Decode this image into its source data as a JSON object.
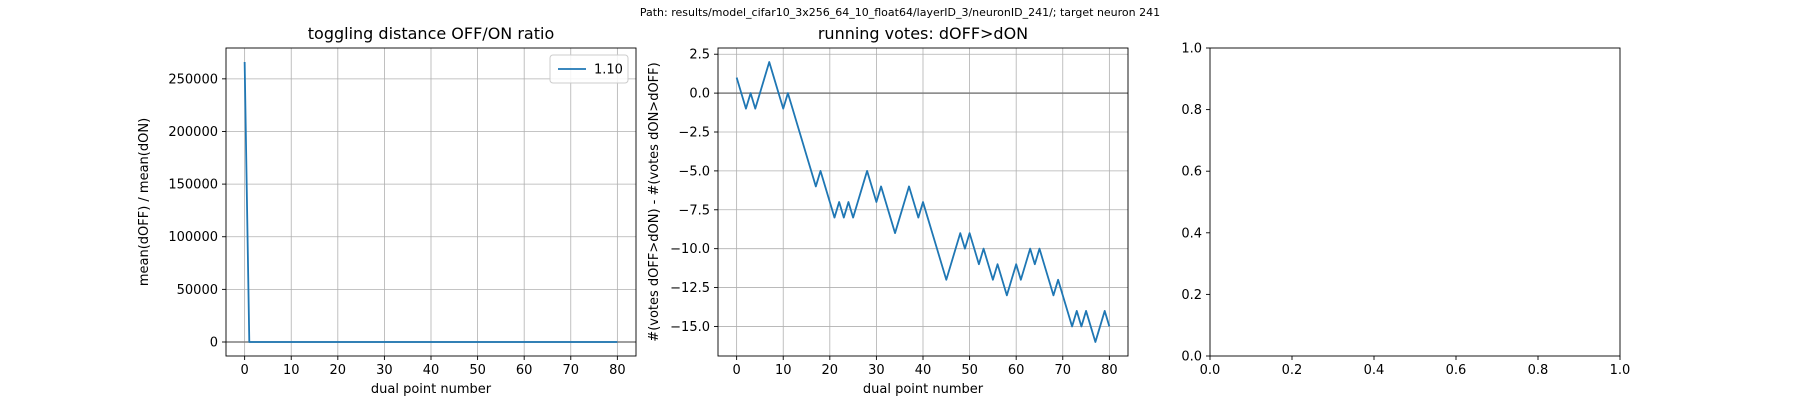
{
  "suptitle": "Path: results/model_cifar10_3x256_64_10_float64/layerID_3/neuronID_241/; target neuron 241",
  "colors": {
    "series": "#1f77b4",
    "zero_line": "#7f7f7f",
    "grid": "#b0b0b0"
  },
  "chart_data": [
    {
      "type": "line",
      "title": "toggling distance OFF/ON ratio",
      "xlabel": "dual point number",
      "ylabel": "mean(dOFF) / mean(dON)",
      "xlim": [
        -4,
        84
      ],
      "ylim": [
        -13300,
        279300
      ],
      "xticks": [
        0,
        10,
        20,
        30,
        40,
        50,
        60,
        70,
        80
      ],
      "xtick_labels": [
        "0",
        "10",
        "20",
        "30",
        "40",
        "50",
        "60",
        "70",
        "80"
      ],
      "yticks": [
        0,
        50000,
        100000,
        150000,
        200000,
        250000
      ],
      "ytick_labels": [
        "0",
        "50000",
        "100000",
        "150000",
        "200000",
        "250000"
      ],
      "grid": true,
      "legend": {
        "placement": "top-right",
        "entries": [
          "1.10"
        ]
      },
      "zero_line": true,
      "series": [
        {
          "name": "1.10",
          "x": [
            0,
            1,
            2,
            3,
            4,
            5,
            6,
            7,
            8,
            9,
            10,
            11,
            12,
            13,
            14,
            15,
            16,
            17,
            18,
            19,
            20,
            21,
            22,
            23,
            24,
            25,
            26,
            27,
            28,
            29,
            30,
            31,
            32,
            33,
            34,
            35,
            36,
            37,
            38,
            39,
            40,
            41,
            42,
            43,
            44,
            45,
            46,
            47,
            48,
            49,
            50,
            51,
            52,
            53,
            54,
            55,
            56,
            57,
            58,
            59,
            60,
            61,
            62,
            63,
            64,
            65,
            66,
            67,
            68,
            69,
            70,
            71,
            72,
            73,
            74,
            75,
            76,
            77,
            78,
            79,
            80
          ],
          "values": [
            266000,
            1.5,
            1.2,
            1.1,
            1.1,
            1.0,
            1.1,
            1.2,
            1.0,
            1.1,
            1.0,
            1.1,
            1.0,
            1.0,
            1.1,
            1.0,
            1.0,
            1.0,
            1.1,
            1.0,
            1.0,
            1.0,
            1.1,
            1.0,
            1.0,
            1.0,
            1.1,
            1.0,
            1.0,
            1.0,
            1.1,
            1.0,
            1.0,
            1.0,
            1.1,
            1.0,
            1.0,
            1.0,
            1.1,
            1.0,
            1.0,
            1.0,
            1.1,
            1.0,
            1.0,
            1.0,
            1.1,
            1.0,
            1.0,
            1.0,
            1.1,
            1.0,
            1.0,
            1.0,
            1.1,
            1.0,
            1.0,
            1.0,
            1.1,
            1.0,
            1.0,
            1.0,
            1.1,
            1.0,
            1.0,
            1.0,
            1.1,
            1.0,
            1.0,
            1.0,
            1.1,
            1.0,
            1.0,
            1.0,
            1.1,
            1.0,
            1.0,
            1.0,
            1.1,
            1.0,
            1.1
          ]
        }
      ]
    },
    {
      "type": "line",
      "title": "running votes: dOFF>dON",
      "xlabel": "dual point number",
      "ylabel": "#(votes dOFF>dON) - #(votes dON>dOFF)",
      "xlim": [
        -4,
        84
      ],
      "ylim": [
        -16.9,
        2.9
      ],
      "xticks": [
        0,
        10,
        20,
        30,
        40,
        50,
        60,
        70,
        80
      ],
      "xtick_labels": [
        "0",
        "10",
        "20",
        "30",
        "40",
        "50",
        "60",
        "70",
        "80"
      ],
      "yticks": [
        2.5,
        0.0,
        -2.5,
        -5.0,
        -7.5,
        -10.0,
        -12.5,
        -15.0
      ],
      "ytick_labels": [
        "2.5",
        "0.0",
        "−2.5",
        "−5.0",
        "−7.5",
        "−10.0",
        "−12.5",
        "−15.0"
      ],
      "grid": true,
      "zero_line": true,
      "series": [
        {
          "x": [
            0,
            1,
            2,
            3,
            4,
            5,
            6,
            7,
            8,
            9,
            10,
            11,
            12,
            13,
            14,
            15,
            16,
            17,
            18,
            19,
            20,
            21,
            22,
            23,
            24,
            25,
            26,
            27,
            28,
            29,
            30,
            31,
            32,
            33,
            34,
            35,
            36,
            37,
            38,
            39,
            40,
            41,
            42,
            43,
            44,
            45,
            46,
            47,
            48,
            49,
            50,
            51,
            52,
            53,
            54,
            55,
            56,
            57,
            58,
            59,
            60,
            61,
            62,
            63,
            64,
            65,
            66,
            67,
            68,
            69,
            70,
            71,
            72,
            73,
            74,
            75,
            76,
            77,
            78,
            79,
            80
          ],
          "values": [
            1,
            0,
            -1,
            0,
            -1,
            0,
            1,
            2,
            1,
            0,
            -1,
            0,
            -1,
            -2,
            -3,
            -4,
            -5,
            -6,
            -5,
            -6,
            -7,
            -8,
            -7,
            -8,
            -7,
            -8,
            -7,
            -6,
            -5,
            -6,
            -7,
            -6,
            -7,
            -8,
            -9,
            -8,
            -7,
            -6,
            -7,
            -8,
            -7,
            -8,
            -9,
            -10,
            -11,
            -12,
            -11,
            -10,
            -9,
            -10,
            -9,
            -10,
            -11,
            -10,
            -11,
            -12,
            -11,
            -12,
            -13,
            -12,
            -11,
            -12,
            -11,
            -10,
            -11,
            -10,
            -11,
            -12,
            -13,
            -12,
            -13,
            -14,
            -15,
            -14,
            -15,
            -14,
            -15,
            -16,
            -15,
            -14,
            -15
          ]
        }
      ]
    },
    {
      "type": "line",
      "title": "",
      "xlim": [
        0,
        1
      ],
      "ylim": [
        0,
        1
      ],
      "xticks": [
        0.0,
        0.2,
        0.4,
        0.6,
        0.8,
        1.0
      ],
      "xtick_labels": [
        "0.0",
        "0.2",
        "0.4",
        "0.6",
        "0.8",
        "1.0"
      ],
      "yticks": [
        0.0,
        0.2,
        0.4,
        0.6,
        0.8,
        1.0
      ],
      "ytick_labels": [
        "0.0",
        "0.2",
        "0.4",
        "0.6",
        "0.8",
        "1.0"
      ],
      "grid": false,
      "series": []
    }
  ]
}
